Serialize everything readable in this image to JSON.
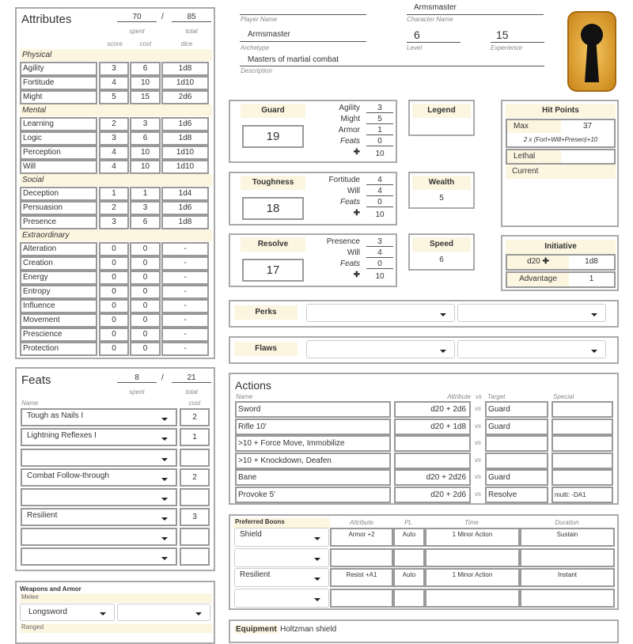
{
  "header": {
    "player_name": "",
    "player_name_label": "Player Name",
    "character_name": "Armsmaster",
    "character_name_label": "Character Name",
    "archetype": "Armsmaster",
    "archetype_label": "Archetype",
    "level": "6",
    "level_label": "Level",
    "experience": "15",
    "experience_label": "Experience",
    "description": "Masters of martial combat",
    "description_label": "Description",
    "logo": "keyhole-logo-icon"
  },
  "attributes": {
    "title": "Attributes",
    "spent": "70",
    "slash": "/",
    "total": "85",
    "spent_label": "spent",
    "total_label": "total",
    "col_score": "score",
    "col_cost": "cost",
    "col_dice": "dice",
    "groups": [
      {
        "name": "Physical",
        "rows": [
          [
            "Agility",
            "3",
            "6",
            "1d8"
          ],
          [
            "Fortitude",
            "4",
            "10",
            "1d10"
          ],
          [
            "Might",
            "5",
            "15",
            "2d6"
          ]
        ]
      },
      {
        "name": "Mental",
        "rows": [
          [
            "Learning",
            "2",
            "3",
            "1d6"
          ],
          [
            "Logic",
            "3",
            "6",
            "1d8"
          ],
          [
            "Perception",
            "4",
            "10",
            "1d10"
          ],
          [
            "Will",
            "4",
            "10",
            "1d10"
          ]
        ]
      },
      {
        "name": "Social",
        "rows": [
          [
            "Deception",
            "1",
            "1",
            "1d4"
          ],
          [
            "Persuasion",
            "2",
            "3",
            "1d6"
          ],
          [
            "Presence",
            "3",
            "6",
            "1d8"
          ]
        ]
      },
      {
        "name": "Extraordinary",
        "rows": [
          [
            "Alteration",
            "0",
            "0",
            "-"
          ],
          [
            "Creation",
            "0",
            "0",
            "-"
          ],
          [
            "Energy",
            "0",
            "0",
            "-"
          ],
          [
            "Entropy",
            "0",
            "0",
            "-"
          ],
          [
            "Influence",
            "0",
            "0",
            "-"
          ],
          [
            "Movement",
            "0",
            "0",
            "-"
          ],
          [
            "Prescience",
            "0",
            "0",
            "-"
          ],
          [
            "Protection",
            "0",
            "0",
            "-"
          ]
        ]
      }
    ]
  },
  "feats": {
    "title": "Feats",
    "spent": "8",
    "slash": "/",
    "total": "21",
    "spent_label": "spent",
    "total_label": "total",
    "col_name": "Name",
    "col_cost": "cost",
    "rows": [
      [
        "Tough as Nails I",
        "2"
      ],
      [
        "Lightning Reflexes I",
        "1"
      ],
      [
        "",
        ""
      ],
      [
        "Combat Follow-through",
        "2"
      ],
      [
        "",
        ""
      ],
      [
        "Resilient",
        "3"
      ],
      [
        "",
        ""
      ],
      [
        "",
        ""
      ]
    ]
  },
  "weapons": {
    "title": "Weapons and Armor",
    "melee_label": "Melee",
    "melee": "Longsword",
    "melee2": "",
    "ranged_label": "Ranged"
  },
  "defenses": [
    {
      "title": "Guard",
      "value": "19",
      "items": [
        [
          "Agility",
          "3",
          false
        ],
        [
          "Might",
          "5",
          false
        ],
        [
          "Armor",
          "1",
          false
        ],
        [
          "Feats",
          "0",
          true
        ]
      ],
      "base": "10"
    },
    {
      "title": "Toughness",
      "value": "18",
      "items": [
        [
          "Fortitude",
          "4",
          false
        ],
        [
          "Will",
          "4",
          false
        ],
        [
          "Feats",
          "0",
          true
        ]
      ],
      "base": "10"
    },
    {
      "title": "Resolve",
      "value": "17",
      "items": [
        [
          "Presence",
          "3",
          false
        ],
        [
          "Will",
          "4",
          false
        ],
        [
          "Feats",
          "0",
          true
        ]
      ],
      "base": "10"
    }
  ],
  "legend": {
    "title": "Legend",
    "value": ""
  },
  "wealth": {
    "title": "Wealth",
    "value": "5"
  },
  "speed": {
    "title": "Speed",
    "value": "6"
  },
  "hit_points": {
    "title": "Hit Points",
    "max_label": "Max",
    "max": "37",
    "formula": "2 x (Fort+Will+Presen)+10",
    "lethal_label": "Lethal",
    "lethal": "",
    "current_label": "Current"
  },
  "initiative": {
    "title": "Initiative",
    "d20_label": "d20",
    "dice": "1d8",
    "advantage_label": "Advantage",
    "advantage": "1"
  },
  "perks": {
    "title": "Perks"
  },
  "flaws": {
    "title": "Flaws"
  },
  "actions": {
    "title": "Actions",
    "col_name": "Name",
    "col_attribute": "Attribute",
    "col_vs": "vs",
    "col_target": "Target",
    "col_special": "Special",
    "rows": [
      [
        "Sword",
        "d20 + 2d6",
        "Guard",
        ""
      ],
      [
        "Rifle 10'",
        "d20 + 1d8",
        "Guard",
        ""
      ],
      [
        ">10 + Force Move, Immobilize",
        "",
        "",
        ""
      ],
      [
        ">10 + Knockdown, Deafen",
        "",
        "",
        ""
      ],
      [
        "Bane",
        "d20 + 2d26",
        "Guard",
        ""
      ],
      [
        "Provoke 5'",
        "d20 + 2d6",
        "Resolve",
        "multi: -DA1"
      ]
    ],
    "vs": "vs"
  },
  "boons": {
    "title": "Preferred Boons",
    "col_attribute": "Attribute",
    "col_pl": "PL",
    "col_time": "Time",
    "col_duration": "Duration",
    "rows": [
      [
        "Shield",
        "Armor +2",
        "Auto",
        "1 Minor Action",
        "Sustain"
      ],
      [
        "",
        "",
        "",
        "",
        ""
      ],
      [
        "Resilient",
        "Resist +A1",
        "Auto",
        "1 Minor Action",
        "Instant"
      ],
      [
        "",
        "",
        "",
        "",
        ""
      ]
    ]
  },
  "equipment": {
    "title": "Equipment",
    "value": "Holtzman shield"
  },
  "colors": {
    "cream": "#fcf5e0",
    "border": "#aaaaaa",
    "logo": "#e0a020"
  }
}
